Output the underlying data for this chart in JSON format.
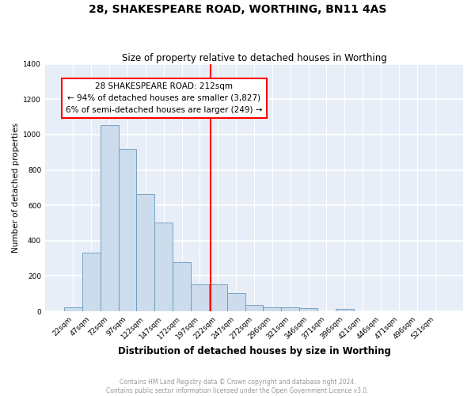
{
  "title": "28, SHAKESPEARE ROAD, WORTHING, BN11 4AS",
  "subtitle": "Size of property relative to detached houses in Worthing",
  "xlabel": "Distribution of detached houses by size in Worthing",
  "ylabel": "Number of detached properties",
  "bar_color": "#ccdcec",
  "bar_edge_color": "#6699bb",
  "background_color": "#e8eef8",
  "grid_color": "#ffffff",
  "bins": [
    "22sqm",
    "47sqm",
    "72sqm",
    "97sqm",
    "122sqm",
    "147sqm",
    "172sqm",
    "197sqm",
    "222sqm",
    "247sqm",
    "272sqm",
    "296sqm",
    "321sqm",
    "346sqm",
    "371sqm",
    "396sqm",
    "421sqm",
    "446sqm",
    "471sqm",
    "496sqm",
    "521sqm"
  ],
  "values": [
    22,
    330,
    1055,
    920,
    665,
    503,
    280,
    155,
    155,
    102,
    38,
    25,
    22,
    17,
    0,
    15,
    0,
    0,
    0,
    0,
    0
  ],
  "property_sqm": 212,
  "annotation_text": "28 SHAKESPEARE ROAD: 212sqm\n← 94% of detached houses are smaller (3,827)\n6% of semi-detached houses are larger (249) →",
  "annotation_box_color": "white",
  "annotation_box_edge": "red",
  "vline_color": "red",
  "ylim": [
    0,
    1400
  ],
  "yticks": [
    0,
    200,
    400,
    600,
    800,
    1000,
    1200,
    1400
  ],
  "footer_text": "Contains HM Land Registry data © Crown copyright and database right 2024.\nContains public sector information licensed under the Open Government Licence v3.0.",
  "title_fontsize": 10,
  "subtitle_fontsize": 8.5,
  "xlabel_fontsize": 8.5,
  "ylabel_fontsize": 7.5,
  "tick_fontsize": 6.5,
  "annot_fontsize": 7.5
}
